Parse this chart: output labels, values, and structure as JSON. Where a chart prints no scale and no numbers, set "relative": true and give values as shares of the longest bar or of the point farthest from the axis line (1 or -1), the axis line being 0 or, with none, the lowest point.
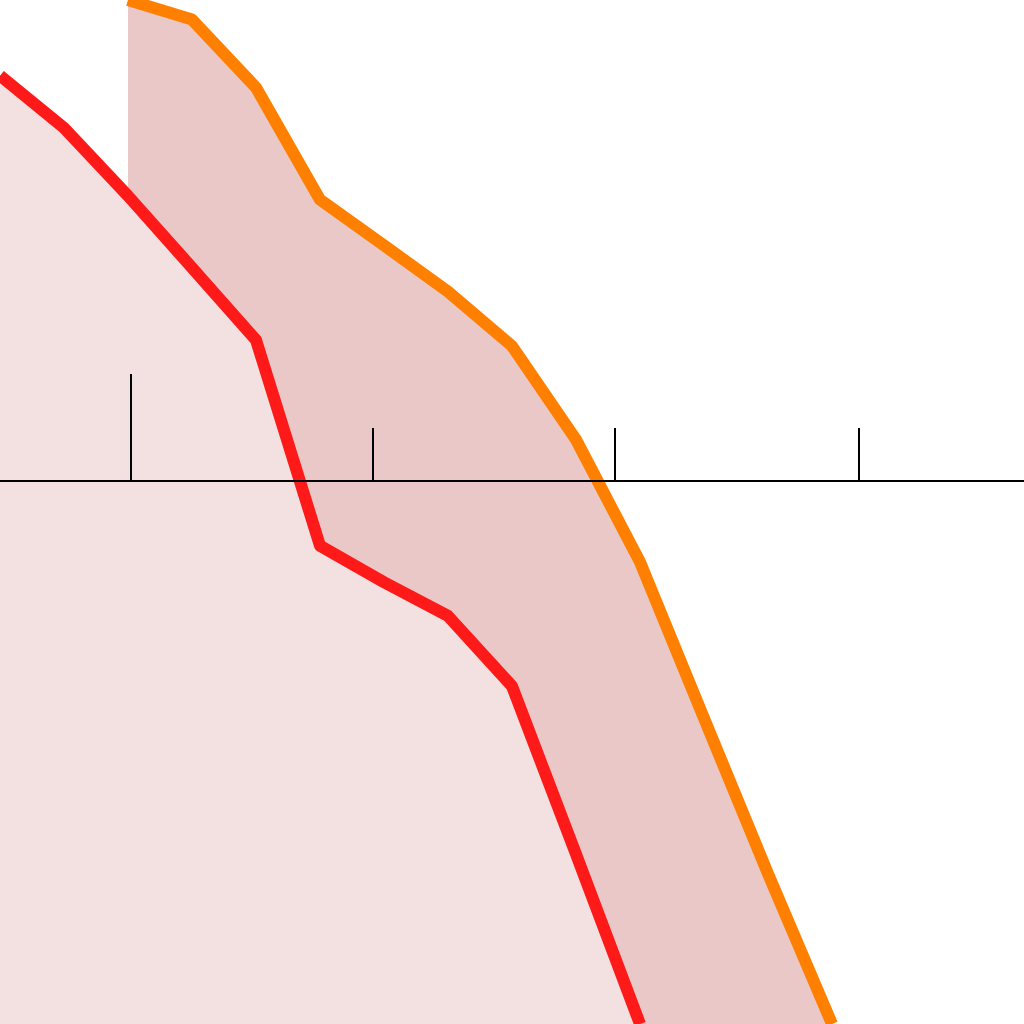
{
  "chart_data": {
    "type": "area",
    "relative": true,
    "tick_labels": false,
    "legend": false,
    "marker": "none",
    "line_style": "solid",
    "categories": [
      null,
      null,
      null,
      null,
      null,
      null,
      null,
      null,
      null,
      null,
      null,
      null,
      null,
      null,
      null,
      null,
      null
    ],
    "ref_lines": [
      {
        "axis": "y",
        "value": 0,
        "color": "#000000"
      }
    ],
    "series": [
      {
        "color": "#ff1a1a",
        "values": [
          0.743,
          0.647,
          0.522,
          0.39,
          0.257,
          -0.121,
          -0.188,
          -0.25,
          -0.379,
          -0.688,
          -1,
          null,
          null,
          null,
          null,
          null,
          null
        ]
      },
      {
        "color": "#ff8000",
        "values": [
          null,
          null,
          0.882,
          0.846,
          0.721,
          0.515,
          0.431,
          0.346,
          0.246,
          0.074,
          -0.151,
          -0.438,
          -0.724,
          -1,
          null,
          null,
          null
        ]
      }
    ]
  }
}
